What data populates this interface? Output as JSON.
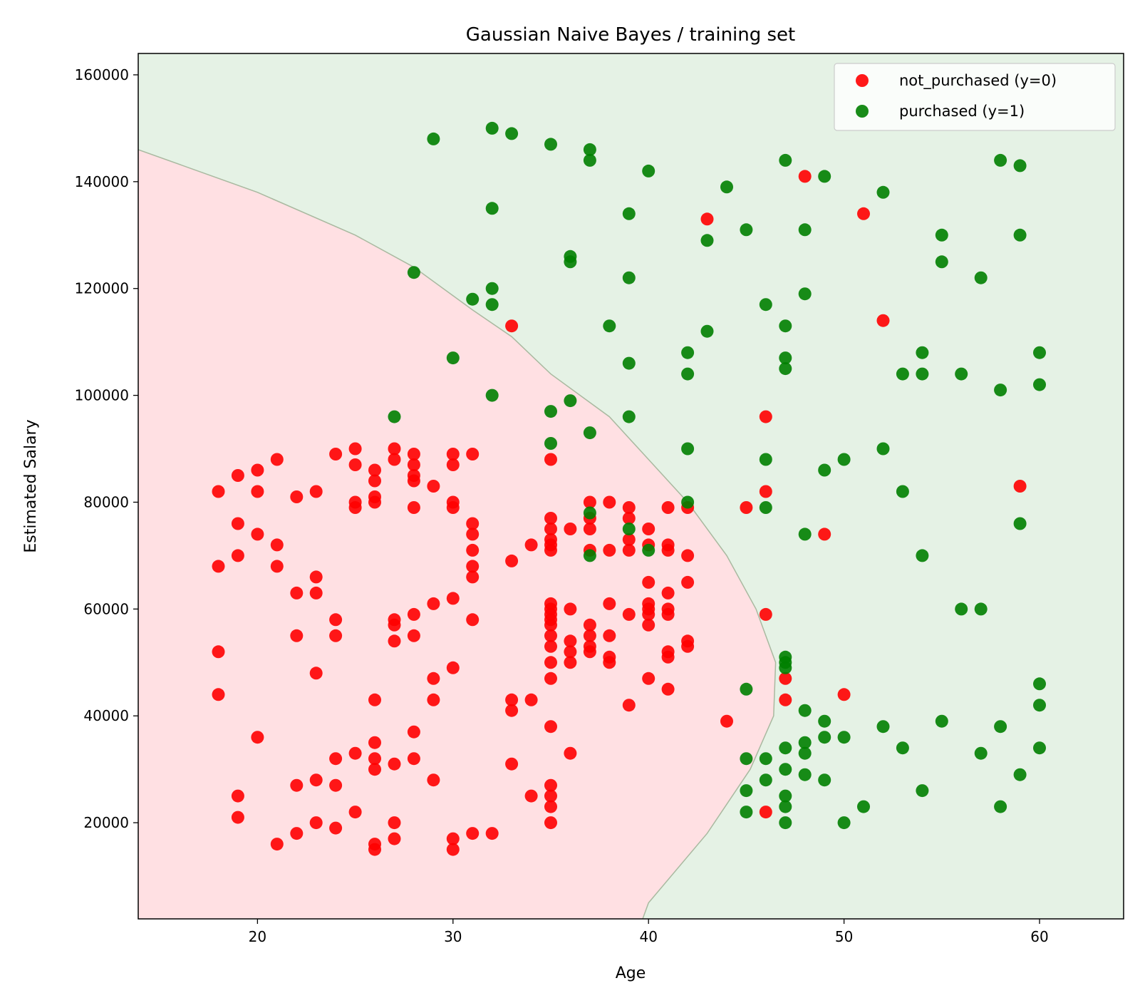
{
  "chart_data": {
    "type": "scatter",
    "title": "Gaussian Naive Bayes / training set",
    "xlabel": "Age",
    "ylabel": "Estimated Salary",
    "xlim": [
      13.9,
      64.3
    ],
    "ylim": [
      2000,
      164000
    ],
    "x_ticks": [
      20,
      30,
      40,
      50,
      60
    ],
    "y_ticks": [
      20000,
      40000,
      60000,
      80000,
      100000,
      120000,
      140000,
      160000
    ],
    "grid": false,
    "legend_position": "top-right",
    "region_colors": {
      "class_0": "#ffe0e3",
      "class_1": "#e5f2e5",
      "boundary": "#a9b9a0"
    },
    "decision_boundary": [
      [
        13.9,
        146000
      ],
      [
        20,
        138000
      ],
      [
        25,
        130000
      ],
      [
        28,
        124000
      ],
      [
        31,
        116000
      ],
      [
        33,
        111000
      ],
      [
        35,
        104000
      ],
      [
        38,
        96000
      ],
      [
        40,
        88000
      ],
      [
        42,
        80000
      ],
      [
        44,
        70000
      ],
      [
        45.5,
        60000
      ],
      [
        46.5,
        50000
      ],
      [
        46.4,
        40000
      ],
      [
        45.2,
        30000
      ],
      [
        43,
        18000
      ],
      [
        40,
        5000
      ],
      [
        39.7,
        2000
      ]
    ],
    "series": [
      {
        "name": "not_purchased (y=0)",
        "color": "#ff0000",
        "points": [
          [
            18,
            82000
          ],
          [
            19,
            85000
          ],
          [
            20,
            86000
          ],
          [
            20,
            82000
          ],
          [
            21,
            88000
          ],
          [
            18,
            68000
          ],
          [
            19,
            76000
          ],
          [
            19,
            70000
          ],
          [
            20,
            74000
          ],
          [
            21,
            72000
          ],
          [
            21,
            68000
          ],
          [
            22,
            81000
          ],
          [
            23,
            82000
          ],
          [
            22,
            63000
          ],
          [
            23,
            66000
          ],
          [
            23,
            63000
          ],
          [
            22,
            55000
          ],
          [
            24,
            58000
          ],
          [
            24,
            55000
          ],
          [
            18,
            52000
          ],
          [
            18,
            44000
          ],
          [
            23,
            48000
          ],
          [
            20,
            36000
          ],
          [
            19,
            25000
          ],
          [
            19,
            21000
          ],
          [
            21,
            16000
          ],
          [
            22,
            18000
          ],
          [
            22,
            27000
          ],
          [
            23,
            28000
          ],
          [
            23,
            20000
          ],
          [
            24,
            19000
          ],
          [
            24,
            27000
          ],
          [
            24,
            32000
          ],
          [
            24,
            89000
          ],
          [
            25,
            90000
          ],
          [
            25,
            87000
          ],
          [
            25,
            80000
          ],
          [
            25,
            79000
          ],
          [
            26,
            86000
          ],
          [
            26,
            84000
          ],
          [
            26,
            81000
          ],
          [
            26,
            80000
          ],
          [
            27,
            90000
          ],
          [
            27,
            88000
          ],
          [
            28,
            89000
          ],
          [
            28,
            87000
          ],
          [
            28,
            85000
          ],
          [
            28,
            84000
          ],
          [
            29,
            83000
          ],
          [
            28,
            79000
          ],
          [
            30,
            89000
          ],
          [
            30,
            87000
          ],
          [
            30,
            80000
          ],
          [
            30,
            79000
          ],
          [
            31,
            89000
          ],
          [
            31,
            76000
          ],
          [
            31,
            74000
          ],
          [
            31,
            71000
          ],
          [
            31,
            68000
          ],
          [
            31,
            66000
          ],
          [
            29,
            61000
          ],
          [
            30,
            62000
          ],
          [
            28,
            59000
          ],
          [
            27,
            58000
          ],
          [
            27,
            57000
          ],
          [
            28,
            55000
          ],
          [
            27,
            54000
          ],
          [
            31,
            58000
          ],
          [
            30,
            49000
          ],
          [
            29,
            47000
          ],
          [
            26,
            43000
          ],
          [
            29,
            43000
          ],
          [
            28,
            37000
          ],
          [
            26,
            35000
          ],
          [
            26,
            32000
          ],
          [
            25,
            33000
          ],
          [
            26,
            30000
          ],
          [
            27,
            31000
          ],
          [
            28,
            32000
          ],
          [
            29,
            28000
          ],
          [
            25,
            22000
          ],
          [
            27,
            20000
          ],
          [
            27,
            17000
          ],
          [
            26,
            16000
          ],
          [
            26,
            15000
          ],
          [
            30,
            17000
          ],
          [
            30,
            15000
          ],
          [
            31,
            18000
          ],
          [
            32,
            18000
          ],
          [
            33,
            31000
          ],
          [
            33,
            43000
          ],
          [
            33,
            41000
          ],
          [
            34,
            43000
          ],
          [
            33,
            69000
          ],
          [
            34,
            72000
          ],
          [
            33,
            113000
          ],
          [
            34,
            25000
          ],
          [
            35,
            27000
          ],
          [
            35,
            25000
          ],
          [
            35,
            23000
          ],
          [
            35,
            20000
          ],
          [
            35,
            38000
          ],
          [
            36,
            33000
          ],
          [
            35,
            47000
          ],
          [
            35,
            50000
          ],
          [
            35,
            53000
          ],
          [
            35,
            55000
          ],
          [
            35,
            57000
          ],
          [
            35,
            58000
          ],
          [
            35,
            59000
          ],
          [
            35,
            60000
          ],
          [
            35,
            61000
          ],
          [
            36,
            60000
          ],
          [
            36,
            54000
          ],
          [
            36,
            52000
          ],
          [
            36,
            50000
          ],
          [
            37,
            57000
          ],
          [
            37,
            55000
          ],
          [
            37,
            53000
          ],
          [
            37,
            52000
          ],
          [
            38,
            55000
          ],
          [
            38,
            51000
          ],
          [
            38,
            50000
          ],
          [
            38,
            61000
          ],
          [
            35,
            71000
          ],
          [
            35,
            72000
          ],
          [
            35,
            73000
          ],
          [
            35,
            75000
          ],
          [
            35,
            77000
          ],
          [
            35,
            88000
          ],
          [
            36,
            75000
          ],
          [
            37,
            75000
          ],
          [
            37,
            77000
          ],
          [
            37,
            80000
          ],
          [
            38,
            80000
          ],
          [
            37,
            71000
          ],
          [
            38,
            71000
          ],
          [
            39,
            71000
          ],
          [
            39,
            73000
          ],
          [
            39,
            77000
          ],
          [
            39,
            79000
          ],
          [
            40,
            75000
          ],
          [
            40,
            72000
          ],
          [
            41,
            72000
          ],
          [
            41,
            71000
          ],
          [
            41,
            79000
          ],
          [
            42,
            79000
          ],
          [
            42,
            70000
          ],
          [
            40,
            65000
          ],
          [
            41,
            63000
          ],
          [
            42,
            65000
          ],
          [
            40,
            61000
          ],
          [
            40,
            60000
          ],
          [
            40,
            59000
          ],
          [
            40,
            57000
          ],
          [
            41,
            60000
          ],
          [
            41,
            59000
          ],
          [
            39,
            59000
          ],
          [
            41,
            52000
          ],
          [
            41,
            51000
          ],
          [
            42,
            54000
          ],
          [
            42,
            53000
          ],
          [
            40,
            47000
          ],
          [
            41,
            45000
          ],
          [
            39,
            42000
          ],
          [
            44,
            39000
          ],
          [
            45,
            79000
          ],
          [
            46,
            82000
          ],
          [
            46,
            96000
          ],
          [
            46,
            59000
          ],
          [
            47,
            47000
          ],
          [
            47,
            43000
          ],
          [
            50,
            44000
          ],
          [
            49,
            74000
          ],
          [
            59,
            83000
          ],
          [
            52,
            114000
          ],
          [
            51,
            134000
          ],
          [
            48,
            141000
          ],
          [
            43,
            133000
          ],
          [
            46,
            22000
          ]
        ]
      },
      {
        "name": "purchased (y=1)",
        "color": "#008000",
        "points": [
          [
            29,
            148000
          ],
          [
            32,
            150000
          ],
          [
            33,
            149000
          ],
          [
            35,
            147000
          ],
          [
            37,
            146000
          ],
          [
            37,
            144000
          ],
          [
            40,
            142000
          ],
          [
            32,
            135000
          ],
          [
            36,
            126000
          ],
          [
            36,
            125000
          ],
          [
            28,
            123000
          ],
          [
            31,
            118000
          ],
          [
            32,
            120000
          ],
          [
            32,
            117000
          ],
          [
            39,
            134000
          ],
          [
            39,
            122000
          ],
          [
            38,
            113000
          ],
          [
            30,
            107000
          ],
          [
            32,
            100000
          ],
          [
            27,
            96000
          ],
          [
            35,
            97000
          ],
          [
            36,
            99000
          ],
          [
            35,
            91000
          ],
          [
            37,
            93000
          ],
          [
            39,
            106000
          ],
          [
            39,
            96000
          ],
          [
            42,
            108000
          ],
          [
            42,
            104000
          ],
          [
            43,
            112000
          ],
          [
            43,
            129000
          ],
          [
            44,
            139000
          ],
          [
            45,
            131000
          ],
          [
            47,
            144000
          ],
          [
            48,
            131000
          ],
          [
            49,
            141000
          ],
          [
            52,
            138000
          ],
          [
            46,
            117000
          ],
          [
            47,
            113000
          ],
          [
            48,
            119000
          ],
          [
            47,
            107000
          ],
          [
            47,
            105000
          ],
          [
            55,
            130000
          ],
          [
            55,
            125000
          ],
          [
            57,
            122000
          ],
          [
            58,
            144000
          ],
          [
            59,
            143000
          ],
          [
            59,
            130000
          ],
          [
            54,
            108000
          ],
          [
            53,
            104000
          ],
          [
            54,
            104000
          ],
          [
            56,
            104000
          ],
          [
            58,
            101000
          ],
          [
            60,
            108000
          ],
          [
            60,
            102000
          ],
          [
            42,
            90000
          ],
          [
            46,
            88000
          ],
          [
            49,
            86000
          ],
          [
            50,
            88000
          ],
          [
            52,
            90000
          ],
          [
            53,
            82000
          ],
          [
            42,
            80000
          ],
          [
            46,
            79000
          ],
          [
            48,
            74000
          ],
          [
            54,
            70000
          ],
          [
            59,
            76000
          ],
          [
            56,
            60000
          ],
          [
            57,
            60000
          ],
          [
            37,
            78000
          ],
          [
            39,
            75000
          ],
          [
            37,
            70000
          ],
          [
            40,
            71000
          ],
          [
            47,
            51000
          ],
          [
            47,
            50000
          ],
          [
            47,
            49000
          ],
          [
            45,
            45000
          ],
          [
            48,
            41000
          ],
          [
            49,
            39000
          ],
          [
            48,
            35000
          ],
          [
            48,
            33000
          ],
          [
            49,
            36000
          ],
          [
            50,
            36000
          ],
          [
            52,
            38000
          ],
          [
            53,
            34000
          ],
          [
            55,
            39000
          ],
          [
            58,
            38000
          ],
          [
            57,
            33000
          ],
          [
            59,
            29000
          ],
          [
            60,
            34000
          ],
          [
            60,
            46000
          ],
          [
            60,
            42000
          ],
          [
            45,
            32000
          ],
          [
            46,
            32000
          ],
          [
            47,
            34000
          ],
          [
            46,
            28000
          ],
          [
            47,
            30000
          ],
          [
            48,
            29000
          ],
          [
            49,
            28000
          ],
          [
            45,
            26000
          ],
          [
            47,
            25000
          ],
          [
            45,
            22000
          ],
          [
            47,
            23000
          ],
          [
            47,
            20000
          ],
          [
            50,
            20000
          ],
          [
            51,
            23000
          ],
          [
            54,
            26000
          ],
          [
            58,
            23000
          ]
        ]
      }
    ]
  }
}
